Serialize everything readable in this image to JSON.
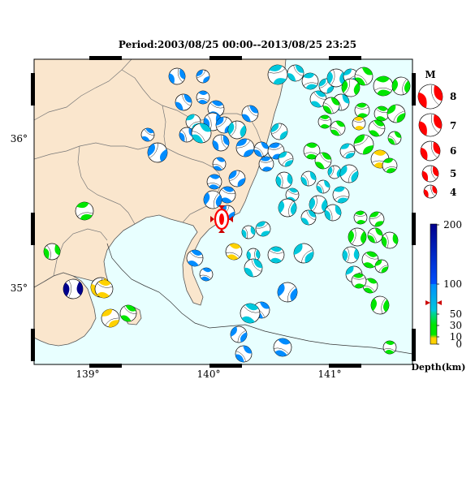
{
  "title": "Period:2003/08/25 00:00--2013/08/25 23:25",
  "axes": {
    "x_ticks": [
      "139°",
      "140°",
      "141°"
    ],
    "y_ticks": [
      "36°",
      "35°"
    ]
  },
  "magnitude_legend": {
    "heading": "M",
    "labels": [
      "8",
      "7",
      "6",
      "5",
      "4"
    ]
  },
  "depth_legend": {
    "tick_labels": [
      "200",
      "100",
      "50",
      "30",
      "10",
      "0"
    ],
    "unit_label": "Depth(km)"
  },
  "colors": {
    "ocean": "#e8ffff",
    "land": "#fae6cd",
    "deep": "#00008c",
    "mid_deep": "#008cff",
    "mid": "#00c8dc",
    "shallow": "#00e600",
    "very_shallow": "#ffd200",
    "highlight": "#ff0000"
  },
  "icons": {
    "event_marker": "red-mechanism-marker-icon"
  }
}
